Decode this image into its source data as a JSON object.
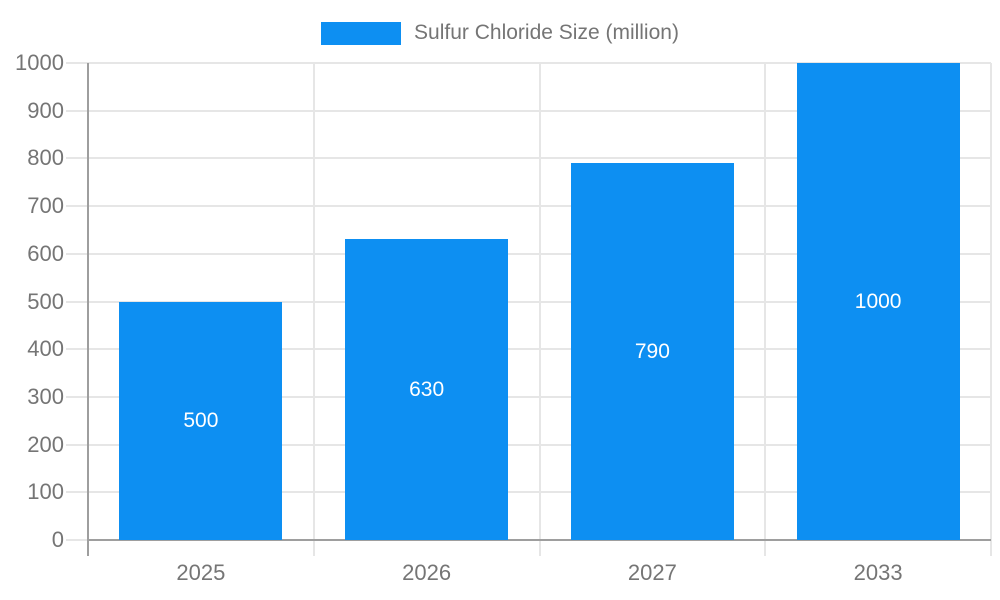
{
  "chart_data": {
    "type": "bar",
    "title": "Sulfur Chloride Size (million)",
    "categories": [
      "2025",
      "2026",
      "2027",
      "2033"
    ],
    "values": [
      500,
      630,
      790,
      1000
    ],
    "series": [
      {
        "name": "Sulfur Chloride Size (million)",
        "values": [
          500,
          630,
          790,
          1000
        ]
      }
    ],
    "bar_value_labels": [
      "500",
      "630",
      "790",
      "1000"
    ],
    "xlabel": "",
    "ylabel": "",
    "ylim": [
      0,
      1000
    ],
    "yticks": [
      0,
      100,
      200,
      300,
      400,
      500,
      600,
      700,
      800,
      900,
      1000
    ],
    "grid": true,
    "legend_position": "top-center",
    "colors": {
      "bar": "#0D8FF2",
      "gridline": "#E6E6E6",
      "axis": "#9E9E9E",
      "tick_text": "#757575",
      "bar_label_text": "#FFFFFF",
      "background": "#FFFFFF"
    }
  }
}
